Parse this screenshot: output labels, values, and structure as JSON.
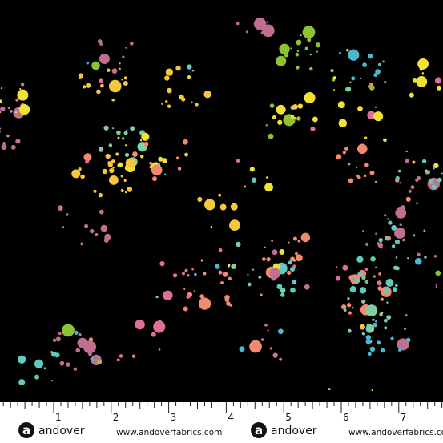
{
  "ruler": {
    "labels": [
      1,
      2,
      3,
      4,
      5,
      6,
      7
    ]
  },
  "brand": [
    {
      "logo": "a",
      "name": "andover",
      "url": "www.andoverfabrics.com"
    },
    {
      "logo": "a",
      "name": "andover",
      "url": "www.andoverfabrics.com"
    }
  ]
}
